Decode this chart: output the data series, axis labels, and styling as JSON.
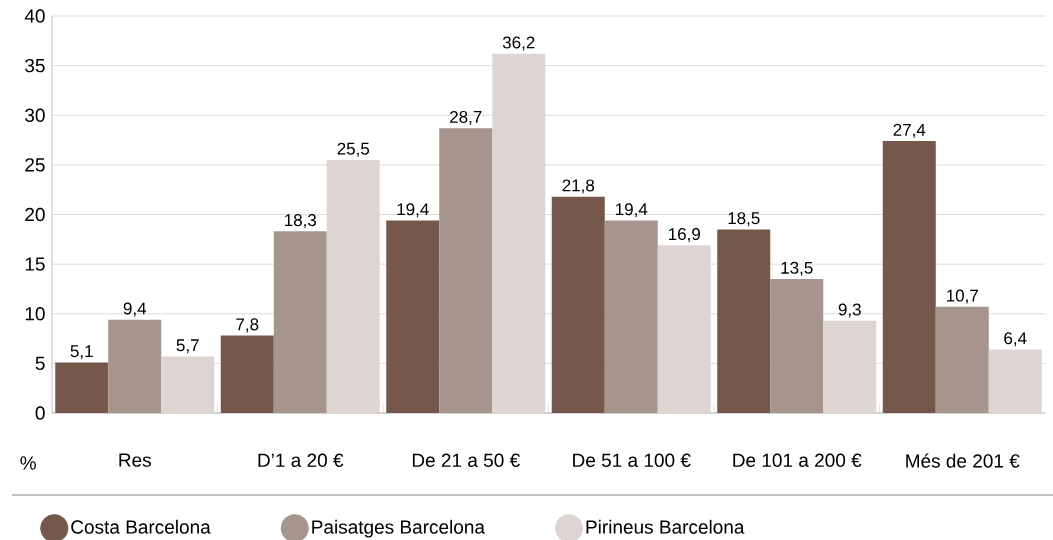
{
  "chart_data": {
    "type": "bar",
    "ylabel": "%",
    "categories": [
      "Res",
      "D’1 a 20 €",
      "De 21 a 50 €",
      "De 51 a 100 €",
      "De 101 a 200 €",
      "Més de 201 €"
    ],
    "series": [
      {
        "name": "Costa Barcelona",
        "color": "#76574b",
        "values": [
          5.1,
          7.8,
          19.4,
          21.8,
          18.5,
          27.4
        ],
        "value_labels": [
          "5,1",
          "7,8",
          "19,4",
          "21,8",
          "18,5",
          "27,4"
        ]
      },
      {
        "name": "Paisatges Barcelona",
        "color": "#a6958c",
        "values": [
          9.4,
          18.3,
          28.7,
          19.4,
          13.5,
          10.7
        ],
        "value_labels": [
          "9,4",
          "18,3",
          "28,7",
          "19,4",
          "13,5",
          "10,7"
        ]
      },
      {
        "name": "Pirineus Barcelona",
        "color": "#ddd5d2",
        "values": [
          5.7,
          25.5,
          36.2,
          16.9,
          9.3,
          6.4
        ],
        "value_labels": [
          "5,7",
          "25,5",
          "36,2",
          "16,9",
          "9,3",
          "6,4"
        ]
      }
    ],
    "ylim": [
      0,
      40
    ],
    "yticks": [
      0,
      5,
      10,
      15,
      20,
      25,
      30,
      35,
      40
    ],
    "grid": "y",
    "legend": "bottom"
  }
}
